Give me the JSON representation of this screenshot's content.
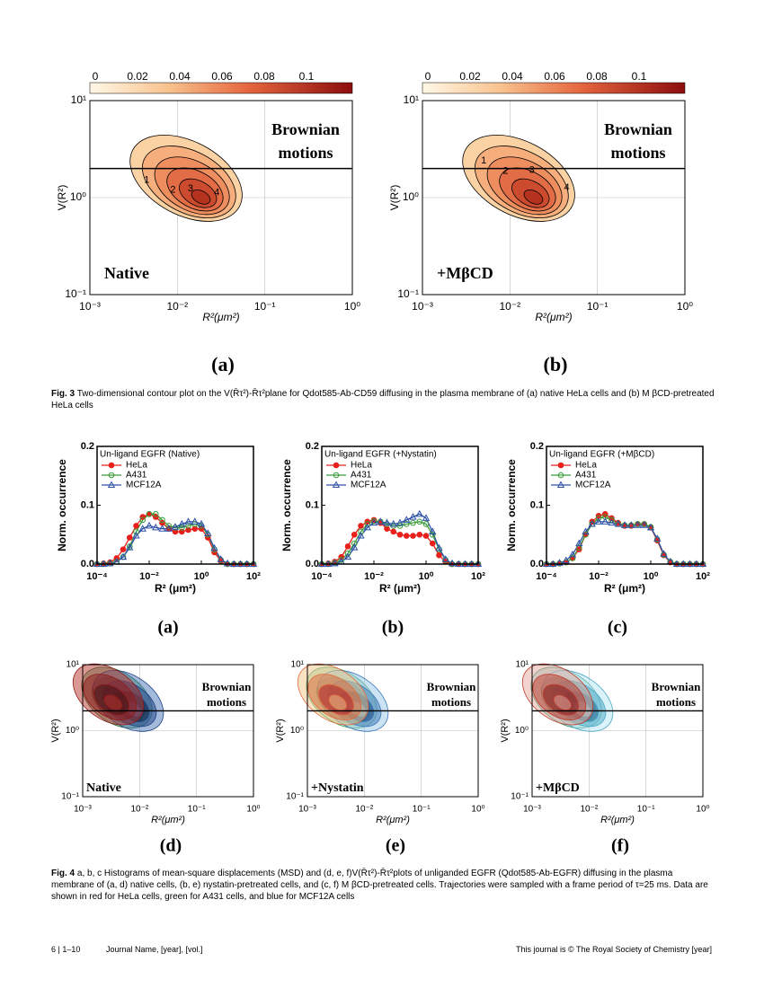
{
  "figure3": {
    "colorbar_ticks": [
      "0",
      "0.02",
      "0.04",
      "0.06",
      "0.08",
      "0.1"
    ],
    "y_ticks": [
      "10¹",
      "10⁰",
      "10⁻¹"
    ],
    "x_ticks": [
      "10⁻³",
      "10⁻²",
      "10⁻¹",
      "10⁰"
    ],
    "y_label": "V(R²)",
    "x_label": "R²(μm²)",
    "brownian": [
      "Brownian",
      "motions"
    ],
    "panels": [
      {
        "label": "(a)",
        "condition": "Native",
        "contour_labels": [
          "1",
          "2",
          "3",
          "4"
        ]
      },
      {
        "label": "(b)",
        "condition": "+MβCD",
        "contour_labels": [
          "1",
          "2",
          "3",
          "4"
        ]
      }
    ],
    "caption": {
      "label": "Fig. 3",
      "text": "Two-dimensional contour plot on the V(R̄τ²)-R̄τ²plane for Qdot585-Ab-CD59 diffusing in the plasma membrane of (a) native HeLa cells and (b) M βCD-pretreated HeLa cells"
    }
  },
  "chart_data": [
    {
      "type": "line",
      "legend_title": "Un-ligand EGFR (Native)",
      "panel_label": "(a)",
      "x_label": "R² (μm²)",
      "y_label": "Norm. occurrence",
      "log_x": true,
      "xlim": [
        0.0001,
        100
      ],
      "xticks": [
        {
          "value": 0.0001,
          "label": "10⁻⁴"
        },
        {
          "value": 0.01,
          "label": "10⁻²"
        },
        {
          "value": 1,
          "label": "10⁰"
        },
        {
          "value": 100,
          "label": "10²"
        }
      ],
      "ylim": [
        0,
        0.2
      ],
      "yticks": [
        {
          "value": 0,
          "label": "0.0"
        },
        0.1,
        0.2
      ],
      "legend": "upper left",
      "x": [
        0.0001,
        0.000178,
        0.000316,
        0.000562,
        0.001,
        0.00178,
        0.00316,
        0.00562,
        0.01,
        0.0178,
        0.0316,
        0.0562,
        0.1,
        0.178,
        0.316,
        0.562,
        1,
        1.78,
        3.16,
        5.62,
        10,
        17.8,
        31.6,
        56.2,
        100
      ],
      "series": [
        {
          "name": "HeLa",
          "color": "#e8201c",
          "marker": "filled-circle",
          "values": [
            0,
            0.001,
            0.003,
            0.01,
            0.025,
            0.045,
            0.065,
            0.08,
            0.085,
            0.08,
            0.07,
            0.06,
            0.055,
            0.055,
            0.058,
            0.06,
            0.06,
            0.045,
            0.02,
            0.005,
            0,
            0,
            0,
            0,
            0
          ]
        },
        {
          "name": "A431",
          "color": "#3a9c3a",
          "marker": "open-circle",
          "values": [
            0,
            0,
            0.001,
            0.004,
            0.012,
            0.03,
            0.055,
            0.075,
            0.085,
            0.085,
            0.075,
            0.065,
            0.062,
            0.062,
            0.065,
            0.068,
            0.065,
            0.05,
            0.025,
            0.007,
            0,
            0,
            0,
            0,
            0
          ]
        },
        {
          "name": "MCF12A",
          "color": "#2d4fa8",
          "marker": "open-triangle",
          "values": [
            0,
            0,
            0.001,
            0.004,
            0.012,
            0.028,
            0.048,
            0.06,
            0.065,
            0.062,
            0.06,
            0.06,
            0.063,
            0.068,
            0.072,
            0.072,
            0.068,
            0.052,
            0.027,
            0.008,
            0.001,
            0,
            0,
            0,
            0
          ]
        }
      ]
    },
    {
      "type": "line",
      "legend_title": "Un-ligand EGFR (+Nystatin)",
      "panel_label": "(b)",
      "x_label": "R² (μm²)",
      "y_label": "Norm. occurrence",
      "log_x": true,
      "xlim": [
        0.0001,
        100
      ],
      "xticks": [
        {
          "value": 0.0001,
          "label": "10⁻⁴"
        },
        {
          "value": 0.01,
          "label": "10⁻²"
        },
        {
          "value": 1,
          "label": "10⁰"
        },
        {
          "value": 100,
          "label": "10²"
        }
      ],
      "ylim": [
        0,
        0.2
      ],
      "yticks": [
        {
          "value": 0,
          "label": "0.0"
        },
        0.1,
        0.2
      ],
      "legend": "upper left",
      "x": [
        0.0001,
        0.000178,
        0.000316,
        0.000562,
        0.001,
        0.00178,
        0.00316,
        0.00562,
        0.01,
        0.0178,
        0.0316,
        0.0562,
        0.1,
        0.178,
        0.316,
        0.562,
        1,
        1.78,
        3.16,
        5.62,
        10,
        17.8,
        31.6,
        56.2,
        100
      ],
      "series": [
        {
          "name": "HeLa",
          "color": "#e8201c",
          "marker": "filled-circle",
          "values": [
            0,
            0.001,
            0.004,
            0.012,
            0.03,
            0.05,
            0.065,
            0.072,
            0.075,
            0.07,
            0.06,
            0.055,
            0.05,
            0.048,
            0.048,
            0.05,
            0.048,
            0.035,
            0.015,
            0.004,
            0,
            0,
            0,
            0,
            0
          ]
        },
        {
          "name": "A431",
          "color": "#3a9c3a",
          "marker": "open-circle",
          "values": [
            0,
            0,
            0.002,
            0.007,
            0.018,
            0.035,
            0.055,
            0.068,
            0.073,
            0.072,
            0.068,
            0.065,
            0.065,
            0.068,
            0.07,
            0.072,
            0.068,
            0.05,
            0.025,
            0.007,
            0,
            0,
            0,
            0,
            0
          ]
        },
        {
          "name": "MCF12A",
          "color": "#2d4fa8",
          "marker": "open-triangle",
          "values": [
            0,
            0,
            0.001,
            0.004,
            0.012,
            0.028,
            0.048,
            0.062,
            0.07,
            0.072,
            0.07,
            0.068,
            0.07,
            0.075,
            0.08,
            0.085,
            0.078,
            0.055,
            0.027,
            0.008,
            0.001,
            0,
            0,
            0,
            0
          ]
        }
      ]
    },
    {
      "type": "line",
      "legend_title": "Un-ligand EGFR (+MβCD)",
      "panel_label": "(c)",
      "x_label": "R² (μm²)",
      "y_label": "Norm. occurrence",
      "log_x": true,
      "xlim": [
        0.0001,
        100
      ],
      "xticks": [
        {
          "value": 0.0001,
          "label": "10⁻⁴"
        },
        {
          "value": 0.01,
          "label": "10⁻²"
        },
        {
          "value": 1,
          "label": "10⁰"
        },
        {
          "value": 100,
          "label": "10²"
        }
      ],
      "ylim": [
        0,
        0.2
      ],
      "yticks": [
        {
          "value": 0,
          "label": "0.0"
        },
        0.1,
        0.2
      ],
      "legend": "upper left",
      "x": [
        0.0001,
        0.000178,
        0.000316,
        0.000562,
        0.001,
        0.00178,
        0.00316,
        0.00562,
        0.01,
        0.0178,
        0.0316,
        0.0562,
        0.1,
        0.178,
        0.316,
        0.562,
        1,
        1.78,
        3.16,
        5.62,
        10,
        17.8,
        31.6,
        56.2,
        100
      ],
      "series": [
        {
          "name": "HeLa",
          "color": "#e8201c",
          "marker": "filled-circle",
          "values": [
            0,
            0,
            0.001,
            0.003,
            0.01,
            0.025,
            0.05,
            0.072,
            0.082,
            0.085,
            0.078,
            0.07,
            0.065,
            0.065,
            0.068,
            0.068,
            0.062,
            0.04,
            0.015,
            0.003,
            0,
            0,
            0,
            0,
            0
          ]
        },
        {
          "name": "A431",
          "color": "#3a9c3a",
          "marker": "open-circle",
          "values": [
            0,
            0,
            0.001,
            0.003,
            0.01,
            0.028,
            0.05,
            0.068,
            0.078,
            0.08,
            0.075,
            0.068,
            0.066,
            0.066,
            0.068,
            0.068,
            0.063,
            0.042,
            0.016,
            0.004,
            0,
            0,
            0,
            0,
            0
          ]
        },
        {
          "name": "MCF12A",
          "color": "#2d4fa8",
          "marker": "open-triangle",
          "values": [
            0,
            0,
            0.002,
            0.006,
            0.016,
            0.035,
            0.055,
            0.068,
            0.072,
            0.072,
            0.07,
            0.068,
            0.066,
            0.066,
            0.066,
            0.066,
            0.062,
            0.043,
            0.017,
            0.004,
            0,
            0,
            0,
            0,
            0
          ]
        }
      ]
    }
  ],
  "figure4_maps": {
    "y_ticks": [
      "10¹",
      "10⁰",
      "10⁻¹"
    ],
    "x_ticks": [
      "10⁻³",
      "10⁻²",
      "10⁻¹",
      "10⁰"
    ],
    "y_label": "V(R²)",
    "x_label": "R²(μm²)",
    "brownian": [
      "Brownian",
      "motions"
    ],
    "panels": [
      {
        "label": "(d)",
        "condition": "Native"
      },
      {
        "label": "(e)",
        "condition": "+Nystatin"
      },
      {
        "label": "(f)",
        "condition": "+MβCD"
      }
    ]
  },
  "figure4_caption": {
    "label": "Fig. 4",
    "text": "a, b, c Histograms of mean-square displacements (MSD) and (d, e, f)V(R̄τ²)-R̄τ²plots of unliganded EGFR (Qdot585-Ab-EGFR) diffusing in the plasma membrane of (a, d) native cells, (b, e) nystatin-pretreated cells, and (c, f) M βCD-pretreated cells. Trajectories were sampled with a frame period of τ=25 ms. Data are shown in red for HeLa cells, green for A431 cells, and blue for MCF12A cells"
  },
  "footer": {
    "pages": "6 | 1–10",
    "journal": "Journal Name, [year], [vol.]",
    "copyright": "This journal is © The Royal Society of Chemistry [year]"
  }
}
